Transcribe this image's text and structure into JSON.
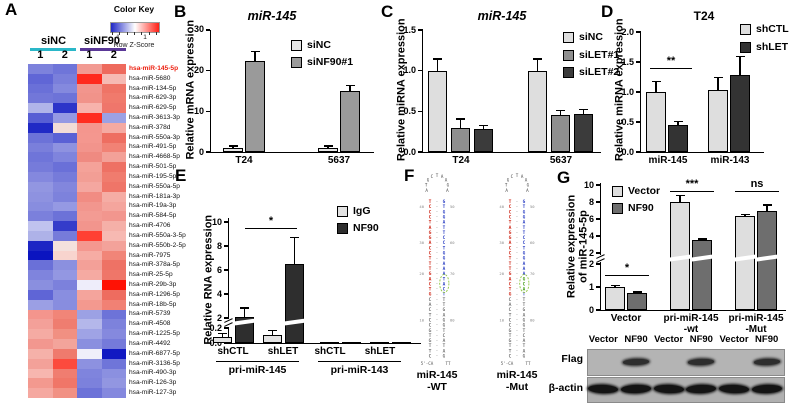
{
  "panel_labels": {
    "A": "A",
    "B": "B",
    "C": "C",
    "D": "D",
    "E": "E",
    "F": "F",
    "G": "G"
  },
  "panelA": {
    "groups": [
      {
        "name": "siNC",
        "underline_color": "#2ab7c8"
      },
      {
        "name": "siNF90",
        "underline_color": "#5a3897"
      }
    ],
    "col_numbers": [
      "1",
      "2",
      "1",
      "2"
    ],
    "color_key": {
      "title": "Color Key",
      "min_label": "-1",
      "max_label": "1",
      "subtitle": "Row Z-Score",
      "gradient": [
        "#1f27c6",
        "#ffffff",
        "#ff2015"
      ]
    },
    "highlight_color": "#ed2010",
    "rows": [
      {
        "name": "hsa-miR-145-5p",
        "highlight": true,
        "cells": [
          "#7d82dc",
          "#6f75d9",
          "#f29a92",
          "#ee6a5d"
        ]
      },
      {
        "name": "hsa-miR-5680",
        "cells": [
          "#6066d6",
          "#7a7fdb",
          "#ff2a1e",
          "#f6bab3"
        ]
      },
      {
        "name": "hsa-miR-134-5p",
        "cells": [
          "#6a70d8",
          "#8489de",
          "#f2958d",
          "#ef7466"
        ]
      },
      {
        "name": "hsa-miR-629-3p",
        "cells": [
          "#7277d9",
          "#6d73d8",
          "#f1938a",
          "#f07a6c"
        ]
      },
      {
        "name": "hsa-miR-629-5p",
        "cells": [
          "#b0b4e9",
          "#2c34c9",
          "#f7b3ac",
          "#ef766b"
        ]
      },
      {
        "name": "hsa-miR-3613-3p",
        "cells": [
          "#575ed4",
          "#9599e3",
          "#ff2d20",
          "#9ca1e4"
        ]
      },
      {
        "name": "hsa-miR-378d",
        "cells": [
          "#2029c5",
          "#f2dcd7",
          "#f4968e",
          "#f5aaa2"
        ]
      },
      {
        "name": "hsa-miR-550a-3p",
        "cells": [
          "#6c72d8",
          "#5a61d5",
          "#f4978f",
          "#ee6e61"
        ]
      },
      {
        "name": "hsa-miR-491-5p",
        "cells": [
          "#7a7fdb",
          "#8e92e0",
          "#f2948c",
          "#f18275"
        ]
      },
      {
        "name": "hsa-miR-4668-5p",
        "cells": [
          "#6f75d9",
          "#7f84dd",
          "#ef8a81",
          "#f3a198"
        ]
      },
      {
        "name": "hsa-miR-501-5p",
        "cells": [
          "#767bda",
          "#6a70d8",
          "#f4a299",
          "#ee7164"
        ]
      },
      {
        "name": "hsa-miR-195-5p",
        "cells": [
          "#8488de",
          "#767bda",
          "#f29e95",
          "#f07c6e"
        ]
      },
      {
        "name": "hsa-miR-550a-5p",
        "cells": [
          "#9296e1",
          "#8286dd",
          "#f4a7a0",
          "#ef7568"
        ]
      },
      {
        "name": "hsa-miR-181a-3p",
        "cells": [
          "#8e92e0",
          "#7d82dc",
          "#f18c83",
          "#f5ada5"
        ]
      },
      {
        "name": "hsa-miR-19a-3p",
        "cells": [
          "#888ddf",
          "#9599e3",
          "#f2968e",
          "#f4a59d"
        ]
      },
      {
        "name": "hsa-miR-584-5p",
        "cells": [
          "#7b80dc",
          "#6c72d8",
          "#f39b93",
          "#f2968e"
        ]
      },
      {
        "name": "hsa-miR-4706",
        "cells": [
          "#c0c3ef",
          "#343cca",
          "#f2958d",
          "#f5b0a8"
        ]
      },
      {
        "name": "hsa-miR-550a-3-5p",
        "cells": [
          "#aeb2e8",
          "#767bda",
          "#ff4033",
          "#f7b9b2"
        ]
      },
      {
        "name": "hsa-miR-550b-2-5p",
        "cells": [
          "#1d26c4",
          "#f4e1dd",
          "#f4978f",
          "#f3a29a"
        ]
      },
      {
        "name": "hsa-miR-7975",
        "cells": [
          "#0b14c0",
          "#f8d4ce",
          "#f6aca4",
          "#f18578"
        ]
      },
      {
        "name": "hsa-miR-378a-5p",
        "cells": [
          "#6a70d8",
          "#8b90df",
          "#f3a098",
          "#ee7265"
        ]
      },
      {
        "name": "hsa-miR-25-5p",
        "cells": [
          "#7f84dd",
          "#9397e2",
          "#f5aaa2",
          "#ef7669"
        ]
      },
      {
        "name": "hsa-miR-29b-3p",
        "cells": [
          "#8a8fdf",
          "#7c81dc",
          "#eeedfa",
          "#ff1205"
        ]
      },
      {
        "name": "hsa-miR-1296-5p",
        "cells": [
          "#5f65d6",
          "#898ee0",
          "#f4a49c",
          "#ee6c5f"
        ]
      },
      {
        "name": "hsa-miR-18b-5p",
        "cells": [
          "#9b9fe4",
          "#888ddf",
          "#f3998f",
          "#f18174"
        ]
      },
      {
        "name": "hsa-miR-5739",
        "cells": [
          "#f4958d",
          "#f18578",
          "#9ca1e4",
          "#6d73d8"
        ]
      },
      {
        "name": "hsa-miR-4508",
        "cells": [
          "#f3a099",
          "#ef7d70",
          "#b4b7ea",
          "#7d82dc"
        ]
      },
      {
        "name": "hsa-miR-1225-5p",
        "cells": [
          "#f5aba3",
          "#f19082",
          "#9fa3e5",
          "#8589de"
        ]
      },
      {
        "name": "hsa-miR-4492",
        "cells": [
          "#f2978f",
          "#f3a49b",
          "#8a8fdf",
          "#757ada"
        ]
      },
      {
        "name": "hsa-miR-6877-5p",
        "cells": [
          "#f5b1a9",
          "#ef7a6d",
          "#f0effa",
          "#1119c2"
        ]
      },
      {
        "name": "hsa-miR-3136-5p",
        "cells": [
          "#f3a199",
          "#fc4a3d",
          "#8d91e0",
          "#6f75d9"
        ]
      },
      {
        "name": "hsa-miR-490-3p",
        "cells": [
          "#f7b6af",
          "#f07d70",
          "#7f84dd",
          "#8b90e0"
        ]
      },
      {
        "name": "hsa-miR-126-3p",
        "cells": [
          "#f3998f",
          "#f07668",
          "#7c81dc",
          "#9296e1"
        ]
      },
      {
        "name": "hsa-miR-127-3p",
        "cells": [
          "#f5a8a0",
          "#f19184",
          "#6c72d8",
          "#8488de"
        ]
      }
    ]
  },
  "chart_data": [
    {
      "id": "B",
      "type": "bar",
      "title": "miR-145",
      "ylabel": "Relative mRNA expression",
      "categories": [
        "T24",
        "5637"
      ],
      "series": [
        {
          "name": "siNC",
          "color": "#e6e6e6",
          "values": [
            1.0,
            1.0
          ],
          "errors": [
            0.4,
            0.4
          ]
        },
        {
          "name": "siNF90#1",
          "color": "#9a9a9a",
          "values": [
            22.3,
            15.0
          ],
          "errors": [
            2.4,
            1.2
          ]
        }
      ],
      "ytick_values": [
        0,
        10,
        20,
        30
      ],
      "ytick_labels": [
        "0",
        "10",
        "20",
        "30"
      ],
      "ylim": [
        0,
        30
      ],
      "legend_position": "top-right",
      "grid": false
    },
    {
      "id": "C",
      "type": "bar",
      "title": "miR-145",
      "ylabel": "Relative miRNA expression",
      "categories": [
        "T24",
        "5637"
      ],
      "series": [
        {
          "name": "siNC",
          "color": "#dedede",
          "values": [
            1.0,
            1.0
          ],
          "errors": [
            0.14,
            0.14
          ]
        },
        {
          "name": "siLET#1",
          "color": "#8f8f8f",
          "values": [
            0.3,
            0.46
          ],
          "errors": [
            0.1,
            0.05
          ]
        },
        {
          "name": "siLET#2",
          "color": "#3b3b3b",
          "values": [
            0.28,
            0.47
          ],
          "errors": [
            0.04,
            0.05
          ]
        }
      ],
      "ytick_values": [
        0,
        0.5,
        1,
        1.5
      ],
      "ytick_labels": [
        "0.0",
        "0.5",
        "1.0",
        "1.5"
      ],
      "ylim": [
        0,
        1.5
      ],
      "legend_position": "top-right",
      "grid": false
    },
    {
      "id": "D",
      "type": "bar",
      "title": "T24",
      "ylabel": "Relative miRNA expression",
      "categories": [
        "miR-145",
        "miR-143"
      ],
      "series": [
        {
          "name": "shCTL",
          "color": "#dedede",
          "values": [
            1.0,
            1.03
          ],
          "errors": [
            0.17,
            0.21
          ]
        },
        {
          "name": "shLET",
          "color": "#333333",
          "values": [
            0.45,
            1.28
          ],
          "errors": [
            0.05,
            0.31
          ]
        }
      ],
      "ytick_values": [
        0,
        0.5,
        1,
        1.5,
        2
      ],
      "ytick_labels": [
        "0.0",
        "0.5",
        "1.0",
        "1.5",
        "2.0"
      ],
      "ylim": [
        0,
        2
      ],
      "legend_position": "top-right",
      "grid": false,
      "annotations": [
        {
          "text": "**",
          "category": "miR-145"
        }
      ]
    },
    {
      "id": "E",
      "type": "bar",
      "title": "",
      "ylabel": "Relative RNA expression",
      "categories": [
        "shCTL",
        "shLET",
        "shCTL",
        "shLET"
      ],
      "group_labels": [
        "pri-miR-145",
        "pri-miR-143"
      ],
      "series": [
        {
          "name": "IgG",
          "color": "#e2e2e2",
          "values": [
            0.08,
            0.11,
            0.01,
            0.01
          ],
          "errors": [
            0.04,
            0.05,
            0,
            0
          ]
        },
        {
          "name": "NF90",
          "color": "#2e2e2e",
          "values": [
            2.1,
            6.5,
            0.02,
            0.02
          ],
          "errors": [
            0.7,
            2.2,
            0,
            0
          ]
        }
      ],
      "axis_break": true,
      "ytick_low_values": [
        0,
        0.2
      ],
      "ytick_low_labels": [
        "0.0",
        "0.2"
      ],
      "ytick_high_values": [
        2,
        4,
        6,
        8,
        10
      ],
      "ytick_high_labels": [
        "2",
        "4",
        "6",
        "8",
        "10"
      ],
      "ylim": [
        0,
        10
      ],
      "legend_position": "top-right",
      "grid": false,
      "annotations": [
        {
          "text": "*",
          "between": [
            "shCTL",
            "shLET"
          ]
        }
      ]
    },
    {
      "id": "G",
      "type": "bar",
      "title": "",
      "ylabel": "Relative expression\nof miR-145-5p",
      "categories": [
        "Vector",
        "pri-miR-145\n-wt",
        "pri-miR-145\n-Mut"
      ],
      "series": [
        {
          "name": "Vector",
          "color": "#dedede",
          "values": [
            1.0,
            8.0,
            6.3
          ],
          "errors": [
            0.06,
            0.7,
            0.15
          ]
        },
        {
          "name": "NF90",
          "color": "#6e6e6e",
          "values": [
            0.72,
            3.5,
            6.9
          ],
          "errors": [
            0.05,
            0.12,
            0.7
          ]
        }
      ],
      "axis_break": true,
      "ytick_low_values": [
        0,
        1,
        2
      ],
      "ytick_low_labels": [
        "0",
        "1",
        "2"
      ],
      "ytick_high_values": [
        2,
        4,
        6,
        8,
        10
      ],
      "ytick_high_labels": [
        "2",
        "4",
        "6",
        "8",
        "10"
      ],
      "ylim": [
        0,
        10
      ],
      "legend_position": "top-left",
      "grid": false,
      "annotations": [
        {
          "text": "*",
          "category": "Vector"
        },
        {
          "text": "***",
          "category": "pri-miR-145-wt"
        },
        {
          "text": "ns",
          "category": "pri-miR-145-Mut"
        }
      ]
    }
  ],
  "panelF": {
    "structures": [
      {
        "name": "miR-145",
        "variant": "-WT",
        "loop": [
          "A",
          "T",
          "G",
          "C",
          "T",
          "A",
          "A",
          "G",
          "A"
        ],
        "left": "TCCCTAGGACCTTTGACTGCACTCCGTGTTC",
        "right": "GTGGATTCCTGGAAATACTTTGAGGTCATAG",
        "left_colors": "rrrrrrrrrrrrrrrrrrrkkkkkkkkkkkk",
        "right_colors": "bbbbbbbbbbbbbbbbbbbkkkkkkkkkkkk",
        "ticks": [
          {
            "row": 1,
            "left": "40",
            "right": "50"
          },
          {
            "row": 8,
            "left": "30",
            "right": "60"
          },
          {
            "row": 14,
            "left": "20",
            "right": "70"
          },
          {
            "row": 23,
            "left": "10",
            "right": "80"
          }
        ],
        "circle_row": 16,
        "footer_left": "5'-CA",
        "footer_right": "TT"
      },
      {
        "name": "miR-145",
        "variant": "-Mut",
        "loop": [
          "A",
          "T",
          "G",
          "C",
          "T",
          "A",
          "A",
          "G",
          "A"
        ],
        "left": "TCCCTAGGACCTTTGACTGCACTCCGTGTTC",
        "right": "GTGGATTCCTGGAAAGCATTTGAGGTCATAG",
        "left_colors": "rrrrrrrrrrrrrrrrrrrkkkkkkkkkkkk",
        "right_colors": "bbbbbbbbbbbbbbbgggbkkkkkkkkkkkk",
        "ticks": [
          {
            "row": 1,
            "left": "40",
            "right": "50"
          },
          {
            "row": 8,
            "left": "30",
            "right": "60"
          },
          {
            "row": 14,
            "left": "20",
            "right": "70"
          },
          {
            "row": 23,
            "left": "10",
            "right": "80"
          }
        ],
        "circle_row": 16,
        "footer_left": "5'-CA",
        "footer_right": "TT"
      }
    ],
    "letter_colors": {
      "r": "#cf2a1b",
      "b": "#2b3fc4",
      "k": "#333333",
      "g": "#3f9b10"
    },
    "circle_color": "#8ec63f"
  },
  "western": {
    "lane_labels": [
      "Vector",
      "NF90",
      "Vector",
      "NF90",
      "Vector",
      "NF90"
    ],
    "rows": [
      {
        "label": "Flag",
        "bands": [
          0,
          1,
          0,
          1,
          0,
          1
        ]
      },
      {
        "label": "β-actin",
        "bands": [
          1,
          1,
          1,
          1,
          1,
          1
        ]
      }
    ]
  }
}
